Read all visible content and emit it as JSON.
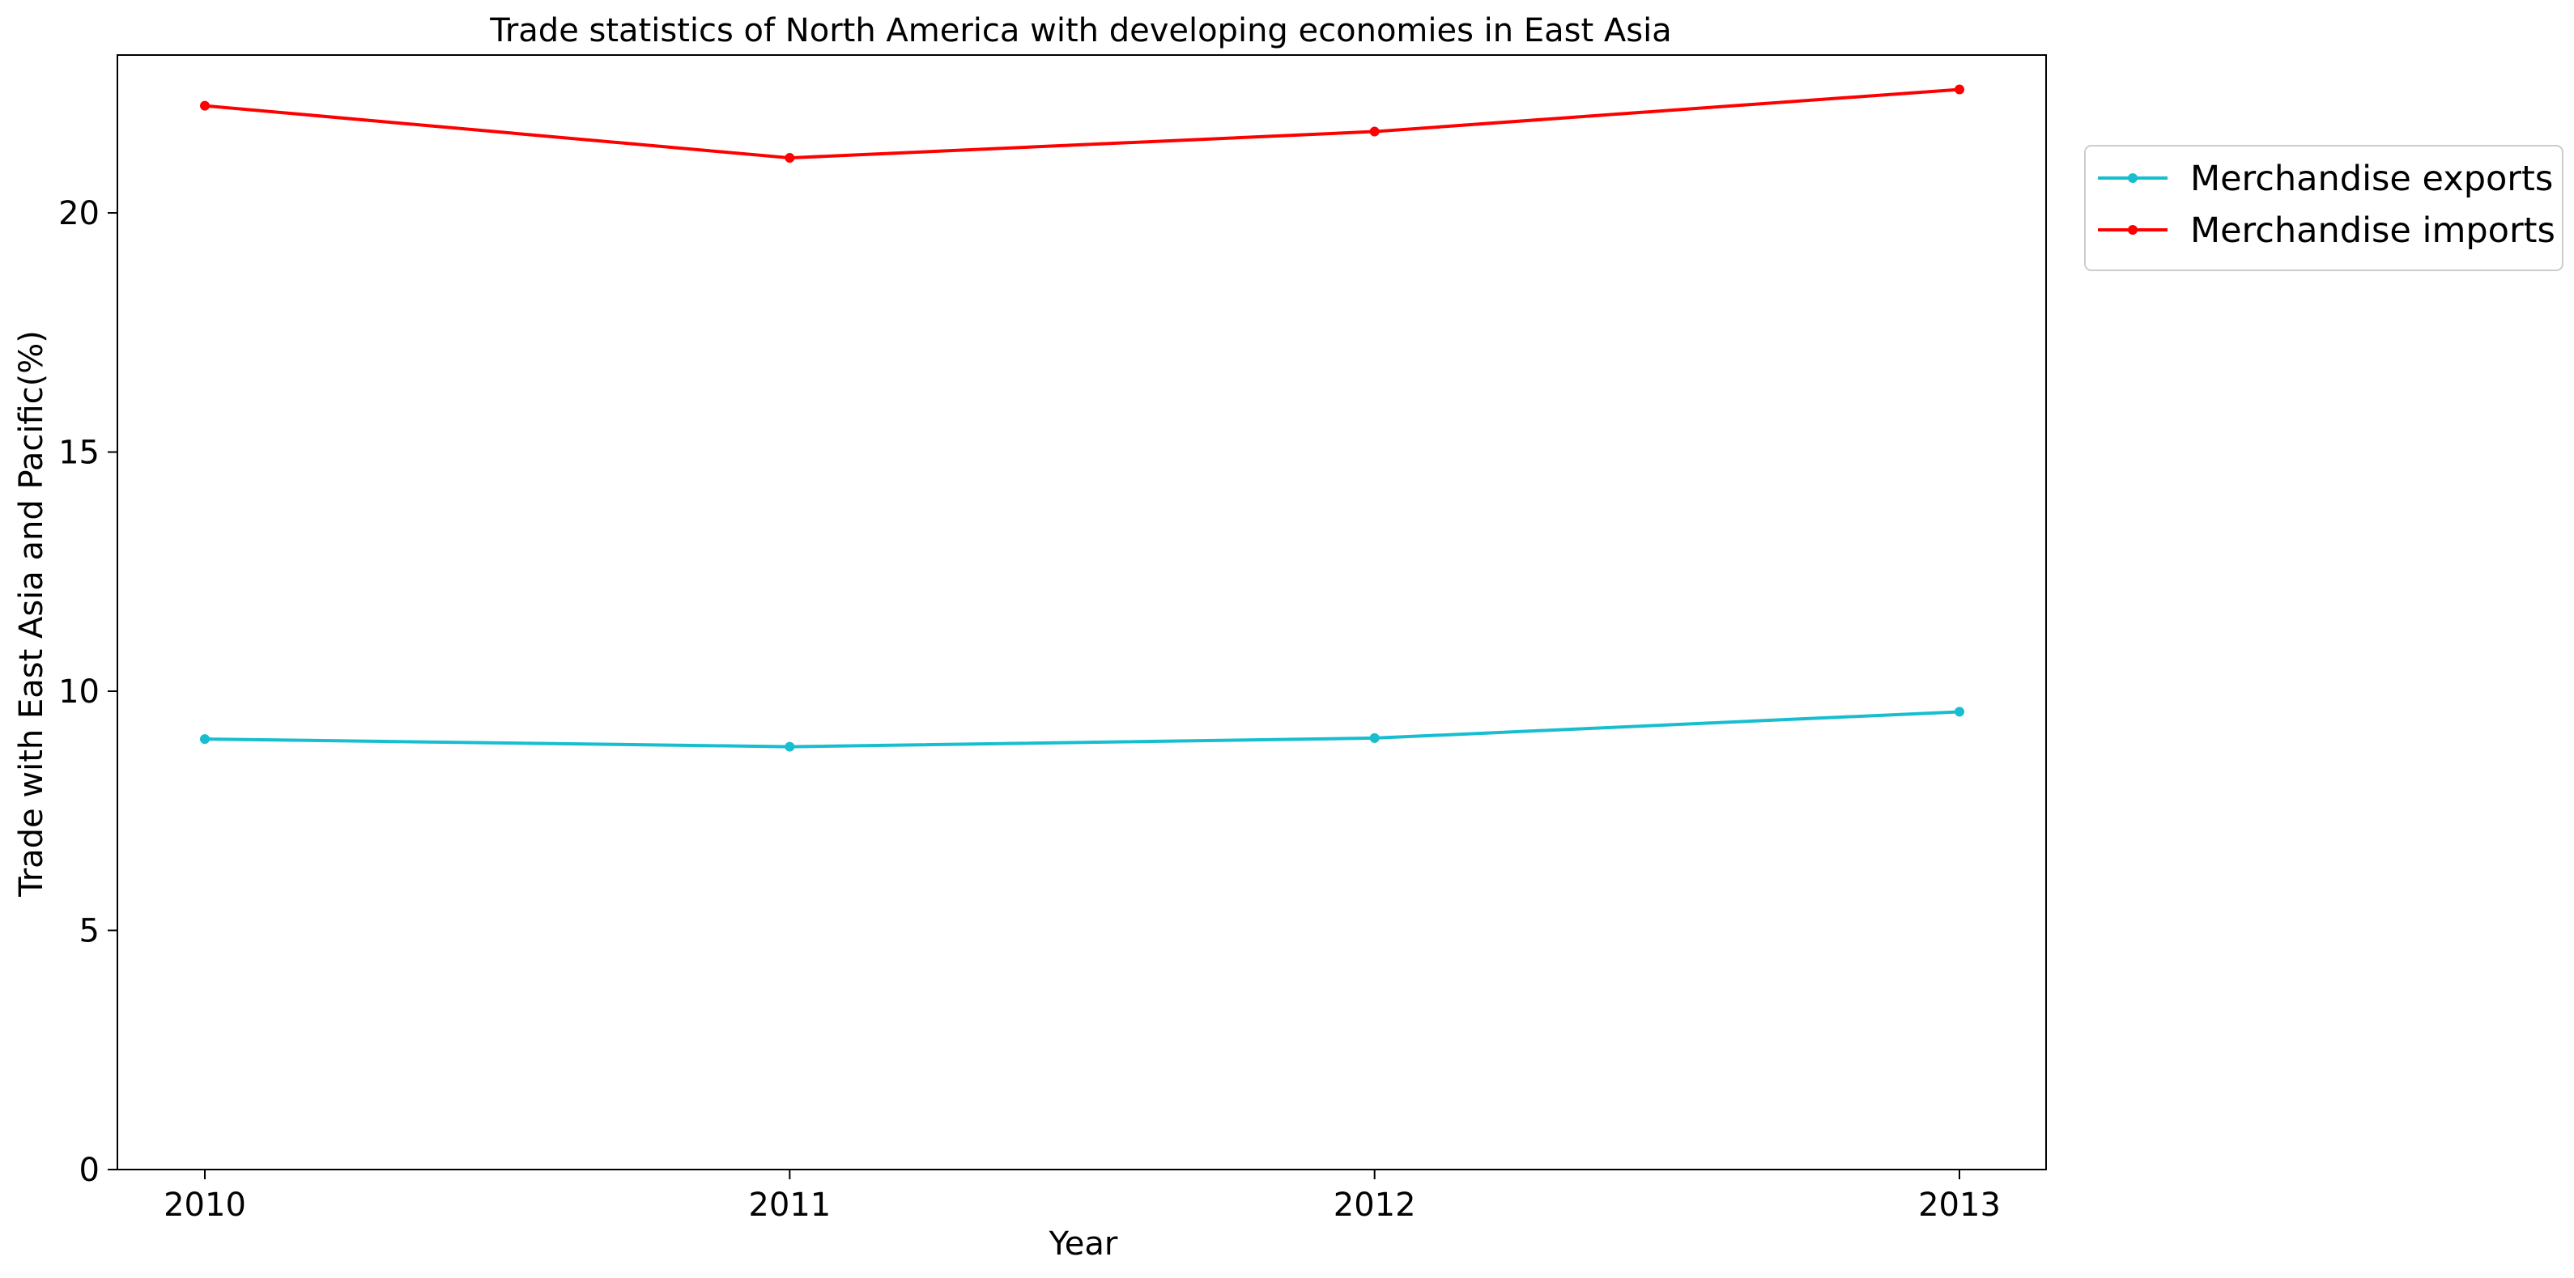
{
  "chart_data": {
    "type": "line",
    "title": "Trade statistics of North America with developing economies in East Asia",
    "xlabel": "Year",
    "ylabel": "Trade with East Asia and Pacific(%)",
    "x": [
      "2010",
      "2011",
      "2012",
      "2013"
    ],
    "ylim": [
      0,
      23.3
    ],
    "yticks": [
      0,
      5,
      10,
      15,
      20
    ],
    "grid": false,
    "legend_position": "outside-top-right",
    "series": [
      {
        "name": "Merchandise exports",
        "color": "#17becf",
        "values": [
          9.0,
          8.84,
          9.02,
          9.57
        ]
      },
      {
        "name": "Merchandise imports",
        "color": "#ff0000",
        "values": [
          22.24,
          21.15,
          21.7,
          22.58
        ]
      }
    ]
  }
}
